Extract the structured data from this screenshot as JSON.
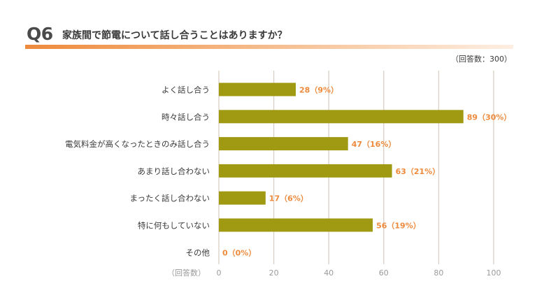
{
  "title": {
    "prefix": "Q6",
    "text": "家族間で節電について話し合うことはありますか？"
  },
  "respondents_note": "（回答数：300）",
  "colors": {
    "bar": "#9f9a12",
    "value_label": "#ee8a3c",
    "grid": "#d9cfc4",
    "title_rule": "#ee8a3c",
    "axis_text": "#9a9a9a"
  },
  "chart_data": {
    "type": "bar",
    "orientation": "horizontal",
    "categories": [
      "よく話し合う",
      "時々話し合う",
      "電気料金が高くなったときのみ話し合う",
      "あまり話し合わない",
      "まったく話し合わない",
      "特に何もしていない",
      "その他"
    ],
    "values": [
      28,
      89,
      47,
      63,
      17,
      56,
      0
    ],
    "value_labels": [
      "28（9%）",
      "89（30%）",
      "47（16%）",
      "63（21%）",
      "17（6%）",
      "56（19%）",
      "0（0%）"
    ],
    "xlabel": "（回答数）",
    "xlim": [
      0,
      100
    ],
    "xticks": [
      0,
      20,
      40,
      60,
      80,
      100
    ],
    "grid": true
  }
}
